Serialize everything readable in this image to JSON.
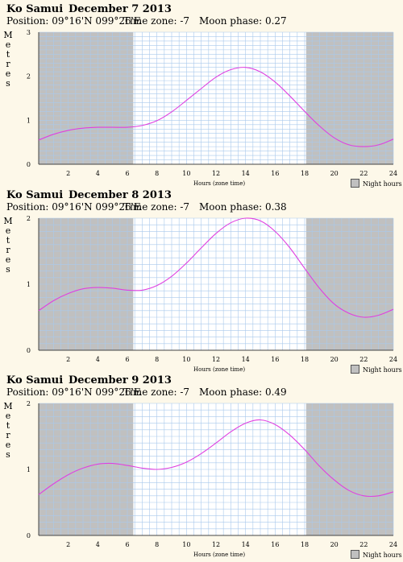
{
  "charts": [
    {
      "location": "Ko Samui",
      "date": "December 7 2013",
      "position": "Position: 09°16'N 099°26'E",
      "timezone": "Time zone: -7",
      "moon": "Moon phase: 0.27",
      "chart_data": {
        "type": "line",
        "xlabel": "Hours (zone time)",
        "ylabel": "Metres",
        "xlim": [
          0,
          24
        ],
        "ylim": [
          0,
          3
        ],
        "xticks": [
          "2",
          "4",
          "6",
          "8",
          "10",
          "12",
          "14",
          "16",
          "18",
          "20",
          "22",
          "24"
        ],
        "yticks": [
          "0",
          "1",
          "2",
          "3"
        ],
        "night_shading": [
          [
            0,
            6.4
          ],
          [
            18.1,
            24
          ]
        ],
        "legend": "Night hours",
        "series": [
          {
            "color": "#e040e0",
            "x": [
              0,
              1,
              2,
              3,
              4,
              5,
              6,
              7,
              8,
              9,
              10,
              11,
              12,
              13,
              14,
              15,
              16,
              17,
              18,
              19,
              20,
              21,
              22,
              23,
              24
            ],
            "y": [
              0.55,
              0.68,
              0.77,
              0.82,
              0.84,
              0.84,
              0.84,
              0.88,
              0.99,
              1.19,
              1.45,
              1.72,
              1.98,
              2.15,
              2.2,
              2.1,
              1.87,
              1.55,
              1.2,
              0.87,
              0.6,
              0.44,
              0.4,
              0.44,
              0.57
            ]
          }
        ]
      }
    },
    {
      "location": "Ko Samui",
      "date": "December 8 2013",
      "position": "Position: 09°16'N 099°26'E",
      "timezone": "Time zone: -7",
      "moon": "Moon phase: 0.38",
      "chart_data": {
        "type": "line",
        "xlabel": "Hours (zone time)",
        "ylabel": "Metres",
        "xlim": [
          0,
          24
        ],
        "ylim": [
          0,
          2
        ],
        "xticks": [
          "2",
          "4",
          "6",
          "8",
          "10",
          "12",
          "14",
          "16",
          "18",
          "20",
          "22",
          "24"
        ],
        "yticks": [
          "0",
          "1",
          "2"
        ],
        "night_shading": [
          [
            0,
            6.4
          ],
          [
            18.1,
            24
          ]
        ],
        "legend": "Night hours",
        "series": [
          {
            "color": "#e040e0",
            "x": [
              0,
              1,
              2,
              3,
              4,
              5,
              6,
              7,
              8,
              9,
              10,
              11,
              12,
              13,
              14,
              15,
              16,
              17,
              18,
              19,
              20,
              21,
              22,
              23,
              24
            ],
            "y": [
              0.6,
              0.75,
              0.86,
              0.93,
              0.95,
              0.94,
              0.91,
              0.91,
              0.98,
              1.12,
              1.32,
              1.55,
              1.77,
              1.93,
              2.0,
              1.96,
              1.8,
              1.55,
              1.24,
              0.94,
              0.7,
              0.56,
              0.5,
              0.53,
              0.62
            ]
          }
        ]
      }
    },
    {
      "location": "Ko Samui",
      "date": "December 9 2013",
      "position": "Position: 09°16'N 099°26'E",
      "timezone": "Time zone: -7",
      "moon": "Moon phase: 0.49",
      "chart_data": {
        "type": "line",
        "xlabel": "Hours (zone time)",
        "ylabel": "Metres",
        "xlim": [
          0,
          24
        ],
        "ylim": [
          0,
          2
        ],
        "xticks": [
          "2",
          "4",
          "6",
          "8",
          "10",
          "12",
          "14",
          "16",
          "18",
          "20",
          "22",
          "24"
        ],
        "yticks": [
          "0",
          "1",
          "2"
        ],
        "night_shading": [
          [
            0,
            6.4
          ],
          [
            18.1,
            24
          ]
        ],
        "legend": "Night hours",
        "series": [
          {
            "color": "#e040e0",
            "x": [
              0,
              1,
              2,
              3,
              4,
              5,
              6,
              7,
              8,
              9,
              10,
              11,
              12,
              13,
              14,
              15,
              16,
              17,
              18,
              19,
              20,
              21,
              22,
              23,
              24
            ],
            "y": [
              0.62,
              0.78,
              0.92,
              1.02,
              1.08,
              1.09,
              1.06,
              1.02,
              1.0,
              1.03,
              1.11,
              1.24,
              1.4,
              1.57,
              1.7,
              1.75,
              1.68,
              1.52,
              1.3,
              1.05,
              0.84,
              0.68,
              0.6,
              0.6,
              0.66
            ]
          }
        ]
      }
    }
  ]
}
